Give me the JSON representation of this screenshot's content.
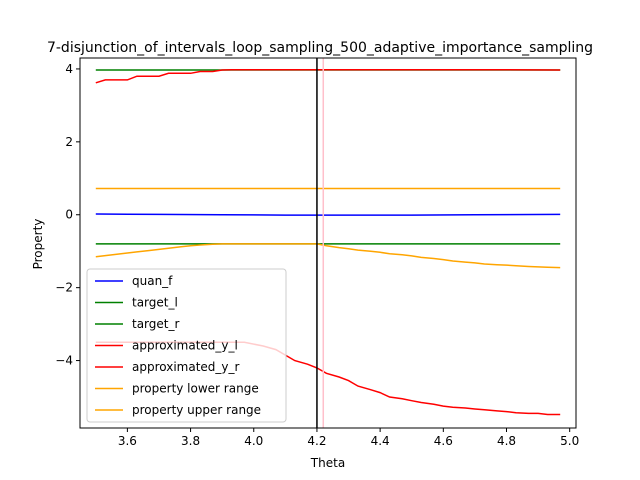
{
  "chart_data": {
    "type": "line",
    "title": "7-disjunction_of_intervals_loop_sampling_500_adaptive_importance_sampling",
    "xlabel": "Theta",
    "ylabel": "Property",
    "xlim": [
      3.45,
      5.02
    ],
    "ylim": [
      -5.85,
      4.3
    ],
    "xticks": [
      3.6,
      3.8,
      4.0,
      4.2,
      4.4,
      4.6,
      4.8,
      5.0
    ],
    "xtick_labels": [
      "3.6",
      "3.8",
      "4.0",
      "4.2",
      "4.4",
      "4.6",
      "4.8",
      "5.0"
    ],
    "yticks": [
      -4,
      -2,
      0,
      2,
      4
    ],
    "ytick_labels": [
      "−4",
      "−2",
      "0",
      "2",
      "4"
    ],
    "grid": false,
    "legend_placement": "lower-left",
    "vlines": [
      {
        "x": 4.2,
        "color": "#000000"
      },
      {
        "x": 4.22,
        "color": "#ffc0cb"
      }
    ],
    "series": [
      {
        "name": "quan_f",
        "color": "#0000ff",
        "x": [
          3.5,
          3.7,
          3.9,
          4.1,
          4.2,
          4.3,
          4.5,
          4.7,
          4.97
        ],
        "y": [
          0.02,
          0.01,
          0.0,
          -0.01,
          -0.01,
          -0.01,
          -0.01,
          0.0,
          0.01
        ]
      },
      {
        "name": "target_l",
        "color": "#008000",
        "x": [
          3.5,
          4.97
        ],
        "y": [
          3.97,
          3.97
        ]
      },
      {
        "name": "target_r",
        "color": "#008000",
        "x": [
          3.5,
          4.97
        ],
        "y": [
          -0.8,
          -0.8
        ]
      },
      {
        "name": "approximated_y_l",
        "color": "#ff0000",
        "x": [
          3.5,
          3.53,
          3.57,
          3.6,
          3.63,
          3.67,
          3.7,
          3.73,
          3.77,
          3.8,
          3.83,
          3.87,
          3.9,
          3.93,
          4.0,
          4.2,
          4.5,
          4.8,
          4.97
        ],
        "y": [
          3.62,
          3.7,
          3.7,
          3.7,
          3.8,
          3.8,
          3.8,
          3.88,
          3.88,
          3.88,
          3.93,
          3.93,
          3.97,
          3.98,
          3.98,
          3.98,
          3.98,
          3.98,
          3.97
        ]
      },
      {
        "name": "approximated_y_r",
        "color": "#ff0000",
        "x": [
          3.5,
          3.7,
          3.9,
          3.97,
          4.03,
          4.07,
          4.1,
          4.13,
          4.17,
          4.2,
          4.23,
          4.27,
          4.3,
          4.33,
          4.37,
          4.4,
          4.43,
          4.47,
          4.5,
          4.53,
          4.57,
          4.6,
          4.63,
          4.67,
          4.7,
          4.73,
          4.77,
          4.8,
          4.83,
          4.87,
          4.9,
          4.93,
          4.97
        ],
        "y": [
          -3.5,
          -3.5,
          -3.5,
          -3.5,
          -3.6,
          -3.7,
          -3.85,
          -4.0,
          -4.1,
          -4.2,
          -4.35,
          -4.45,
          -4.55,
          -4.7,
          -4.8,
          -4.88,
          -5.0,
          -5.05,
          -5.1,
          -5.15,
          -5.2,
          -5.25,
          -5.28,
          -5.3,
          -5.33,
          -5.35,
          -5.38,
          -5.4,
          -5.43,
          -5.45,
          -5.45,
          -5.48,
          -5.48
        ]
      },
      {
        "name": "property lower range",
        "color": "#ffa500",
        "x": [
          3.5,
          4.97
        ],
        "y": [
          0.72,
          0.72
        ]
      },
      {
        "name": "property upper range",
        "color": "#ffa500",
        "x": [
          3.5,
          3.53,
          3.57,
          3.6,
          3.63,
          3.67,
          3.7,
          3.73,
          3.77,
          3.8,
          3.83,
          3.87,
          3.9,
          4.0,
          4.1,
          4.2,
          4.23,
          4.27,
          4.3,
          4.33,
          4.37,
          4.4,
          4.43,
          4.47,
          4.5,
          4.53,
          4.57,
          4.6,
          4.63,
          4.67,
          4.7,
          4.73,
          4.77,
          4.8,
          4.83,
          4.87,
          4.9,
          4.93,
          4.97
        ],
        "y": [
          -1.15,
          -1.12,
          -1.08,
          -1.05,
          -1.02,
          -0.98,
          -0.95,
          -0.92,
          -0.88,
          -0.85,
          -0.83,
          -0.81,
          -0.8,
          -0.8,
          -0.8,
          -0.8,
          -0.85,
          -0.9,
          -0.93,
          -0.97,
          -1.0,
          -1.03,
          -1.07,
          -1.1,
          -1.13,
          -1.17,
          -1.2,
          -1.23,
          -1.27,
          -1.3,
          -1.32,
          -1.35,
          -1.37,
          -1.38,
          -1.4,
          -1.42,
          -1.43,
          -1.44,
          -1.45
        ]
      }
    ]
  }
}
